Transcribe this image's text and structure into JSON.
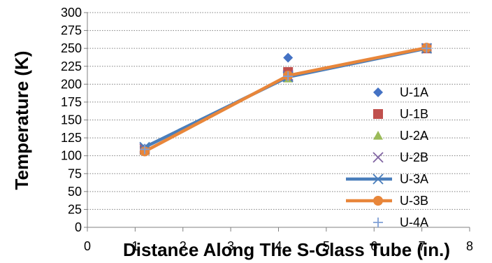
{
  "chart_data": {
    "type": "scatter",
    "xlabel": "Distance Along The S-Glass Tube (in.)",
    "ylabel": "Temperature (K)",
    "xlim": [
      0,
      8
    ],
    "ylim": [
      0,
      300
    ],
    "x_ticks": [
      0,
      1,
      2,
      3,
      4,
      5,
      6,
      7,
      8
    ],
    "y_ticks": [
      0,
      25,
      50,
      75,
      100,
      125,
      150,
      175,
      200,
      225,
      250,
      275,
      300
    ],
    "grid": "horizontal dotted",
    "legend_position": "right-inside",
    "series": [
      {
        "name": "U-1A",
        "marker": "diamond",
        "color": "#4472c4",
        "line": false,
        "x": [
          1.2,
          4.2,
          7.1
        ],
        "y": [
          110,
          237,
          250
        ]
      },
      {
        "name": "U-1B",
        "marker": "square",
        "color": "#c0504d",
        "line": false,
        "x": [
          1.2,
          4.2,
          7.1
        ],
        "y": [
          108,
          217,
          250
        ]
      },
      {
        "name": "U-2A",
        "marker": "triangle",
        "color": "#9bbb59",
        "line": false,
        "x": [
          1.2,
          4.2,
          7.1
        ],
        "y": [
          107,
          208,
          250
        ]
      },
      {
        "name": "U-2B",
        "marker": "x",
        "color": "#8064a2",
        "line": false,
        "x": [
          1.2,
          4.2,
          7.1
        ],
        "y": [
          110,
          212,
          250
        ]
      },
      {
        "name": "U-3A",
        "marker": "asterisk",
        "color": "#4a7ebb",
        "line": true,
        "x": [
          1.2,
          4.2,
          7.1
        ],
        "y": [
          112,
          210,
          250
        ]
      },
      {
        "name": "U-3B",
        "marker": "circle",
        "color": "#e8863a",
        "line": true,
        "x": [
          1.2,
          4.2,
          7.1
        ],
        "y": [
          106,
          212,
          251
        ]
      },
      {
        "name": "U-4A",
        "marker": "plus",
        "color": "#7f9fd5",
        "line": false,
        "x": [
          1.2,
          4.2,
          7.1
        ],
        "y": [
          109,
          211,
          250
        ]
      }
    ]
  }
}
